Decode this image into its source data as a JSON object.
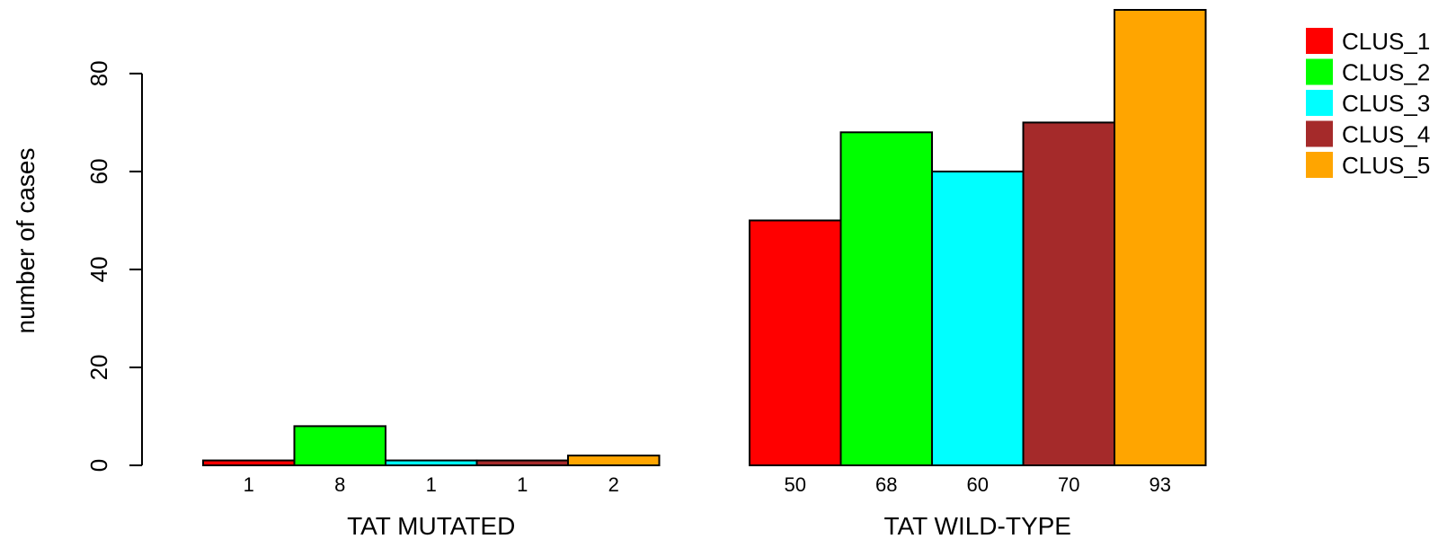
{
  "chart_data": {
    "type": "bar",
    "groups": [
      "TAT MUTATED",
      "TAT WILD-TYPE"
    ],
    "series": [
      {
        "name": "CLUS_1",
        "color": "#ff0000",
        "values": [
          1,
          50
        ]
      },
      {
        "name": "CLUS_2",
        "color": "#00ff00",
        "values": [
          8,
          68
        ]
      },
      {
        "name": "CLUS_3",
        "color": "#00ffff",
        "values": [
          1,
          60
        ]
      },
      {
        "name": "CLUS_4",
        "color": "#a52a2a",
        "values": [
          1,
          70
        ]
      },
      {
        "name": "CLUS_5",
        "color": "#ffa500",
        "values": [
          2,
          93
        ]
      }
    ],
    "count_labels": [
      [
        "1",
        "8",
        "1",
        "1",
        "2"
      ],
      [
        "50",
        "68",
        "60",
        "70",
        "93"
      ]
    ],
    "ylabel": "number of cases",
    "yticks": [
      0,
      20,
      40,
      60,
      80
    ],
    "ylim": [
      0,
      93
    ],
    "legend_position": "top-right",
    "grid": false
  }
}
